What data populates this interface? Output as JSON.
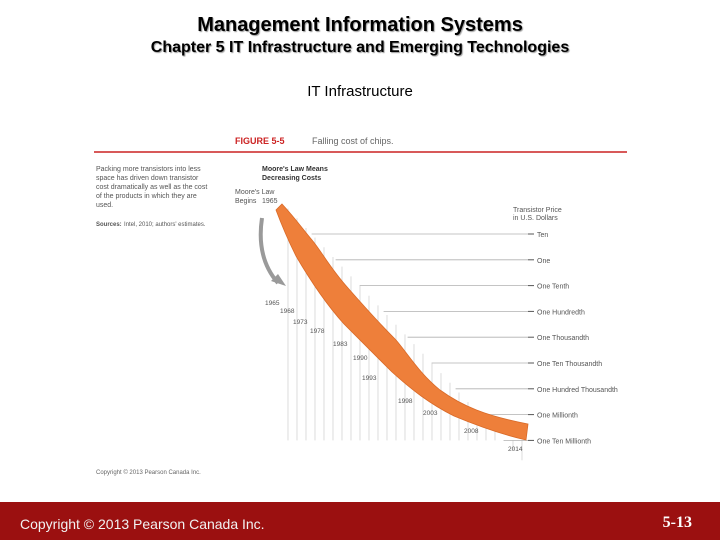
{
  "slide": {
    "title": "Management Information Systems",
    "subtitle": "Chapter 5 IT Infrastructure and Emerging Technologies",
    "heading": "IT Infrastructure",
    "copyright": "Copyright © 2013 Pearson Canada Inc.",
    "page_number": "5-13"
  },
  "figure": {
    "label": "FIGURE 5-5",
    "caption": "Falling cost of chips.",
    "description_lines": [
      "Packing more transistors into less",
      "space has driven down transistor",
      "cost dramatically as well as the cost",
      "of the products in which they are",
      "used."
    ],
    "sources_label": "Sources:",
    "sources_text": "Intel, 2010; authors' estimates.",
    "copyright": "Copyright © 2013 Pearson Canada Inc.",
    "band_title_lines": [
      "Moore's Law Means",
      "Decreasing Costs"
    ],
    "begin_label_lines": [
      "Moore's Law",
      "Begins"
    ],
    "begin_year": "1965",
    "axis_title_lines": [
      "Transistor Price",
      "in U.S. Dollars"
    ],
    "colors": {
      "band": "#ee7f3a",
      "red_rule": "#cc2222",
      "arrow": "#9a9a9a"
    }
  },
  "chart_data": {
    "type": "area",
    "title": "Moore's Law Means Decreasing Costs",
    "ylabel": "Transistor Price in U.S. Dollars",
    "y_scale": "log",
    "price_levels": [
      "Ten",
      "One",
      "One Tenth",
      "One Hundredth",
      "One Thousandth",
      "One Ten Thousandth",
      "One Hundred Thousandth",
      "One Millionth",
      "One Ten Millionth"
    ],
    "years": [
      "1965",
      "1968",
      "1973",
      "1978",
      "1983",
      "1990",
      "1993",
      "1998",
      "2003",
      "2008",
      "2014"
    ]
  }
}
